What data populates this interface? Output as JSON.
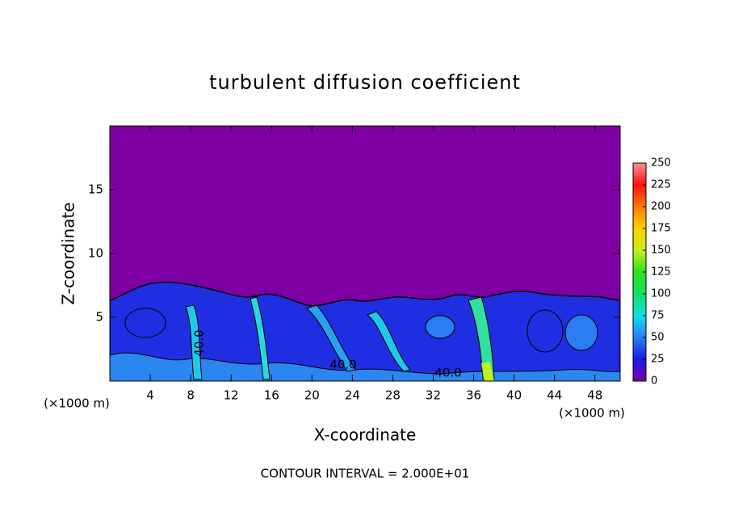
{
  "chart_data": {
    "type": "contour",
    "title": "turbulent diffusion coefficient",
    "xlabel": "X-coordinate",
    "ylabel": "Z-coordinate",
    "x_unit_label": "(×1000 m)",
    "footer": "CONTOUR INTERVAL = 2.000E+01",
    "xlim": [
      0,
      50.5
    ],
    "xticks": [
      4,
      8,
      12,
      16,
      20,
      24,
      28,
      32,
      36,
      40,
      44,
      48
    ],
    "ylim": [
      0,
      20
    ],
    "yticks": [
      5,
      10,
      15
    ],
    "colorbar": {
      "lim": [
        0,
        250
      ],
      "ticks": [
        0,
        25,
        50,
        75,
        100,
        125,
        150,
        175,
        200,
        225,
        250
      ]
    },
    "annotations": [
      "40.0",
      "40.0",
      "40.0"
    ]
  }
}
